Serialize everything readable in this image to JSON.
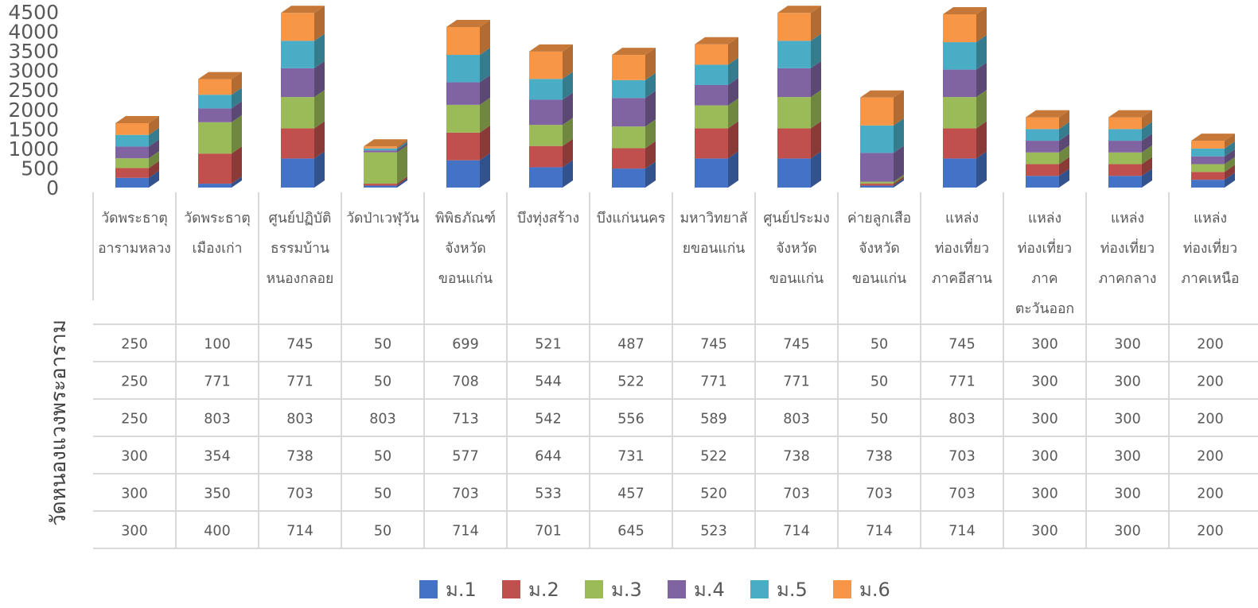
{
  "chart_data": {
    "type": "bar",
    "stacked": true,
    "style": "3d-column-with-data-table",
    "ylim": [
      0,
      4500
    ],
    "yticks": [
      0,
      500,
      1000,
      1500,
      2000,
      2500,
      3000,
      3500,
      4000,
      4500
    ],
    "ylabel": "",
    "xlabel": "",
    "table_row_header": "วัดหนองแวงพระอาราม",
    "legend_position": "bottom",
    "categories": [
      [
        "วัดพระธาตุ",
        "อารามหลวง"
      ],
      [
        "วัดพระธาตุ",
        "เมืองเก่า"
      ],
      [
        "ศูนย์ปฏิบัติ",
        "ธรรมบ้าน",
        "หนองกลอย"
      ],
      [
        "วัดป่าเวฬุวัน"
      ],
      [
        "พิพิธภัณฑ์",
        "จังหวัด",
        "ขอนแก่น"
      ],
      [
        "บึงทุ่งสร้าง"
      ],
      [
        "บึงแก่นนคร"
      ],
      [
        "มหาวิทยาลั",
        "ยขอนแก่น"
      ],
      [
        "ศูนย์ประมง",
        "จังหวัด",
        "ขอนแก่น"
      ],
      [
        "ค่ายลูกเสือ",
        "จังหวัด",
        "ขอนแก่น"
      ],
      [
        "แหล่ง",
        "ท่องเที่ยว",
        "ภาคอีสาน"
      ],
      [
        "แหล่ง",
        "ท่องเที่ยว",
        "ภาค",
        "ตะวันออก"
      ],
      [
        "แหล่ง",
        "ท่องเที่ยว",
        "ภาคกลาง"
      ],
      [
        "แหล่ง",
        "ท่องเที่ยว",
        "ภาคเหนือ"
      ]
    ],
    "series": [
      {
        "name": "ม.1",
        "color": "#4472c4",
        "values": [
          250,
          100,
          745,
          50,
          699,
          521,
          487,
          745,
          745,
          50,
          745,
          300,
          300,
          200
        ]
      },
      {
        "name": "ม.2",
        "color": "#c0504d",
        "values": [
          250,
          771,
          771,
          50,
          708,
          544,
          522,
          771,
          771,
          50,
          771,
          300,
          300,
          200
        ]
      },
      {
        "name": "ม.3",
        "color": "#9bbb59",
        "values": [
          250,
          803,
          803,
          803,
          713,
          542,
          556,
          589,
          803,
          50,
          803,
          300,
          300,
          200
        ]
      },
      {
        "name": "ม.4",
        "color": "#8064a2",
        "values": [
          300,
          354,
          738,
          50,
          577,
          644,
          731,
          522,
          738,
          738,
          703,
          300,
          300,
          200
        ]
      },
      {
        "name": "ม.5",
        "color": "#4bacc6",
        "values": [
          300,
          350,
          703,
          50,
          703,
          533,
          457,
          520,
          703,
          703,
          703,
          300,
          300,
          200
        ]
      },
      {
        "name": "ม.6",
        "color": "#f79646",
        "values": [
          300,
          400,
          714,
          50,
          714,
          701,
          645,
          523,
          714,
          714,
          714,
          300,
          300,
          200
        ]
      }
    ]
  }
}
